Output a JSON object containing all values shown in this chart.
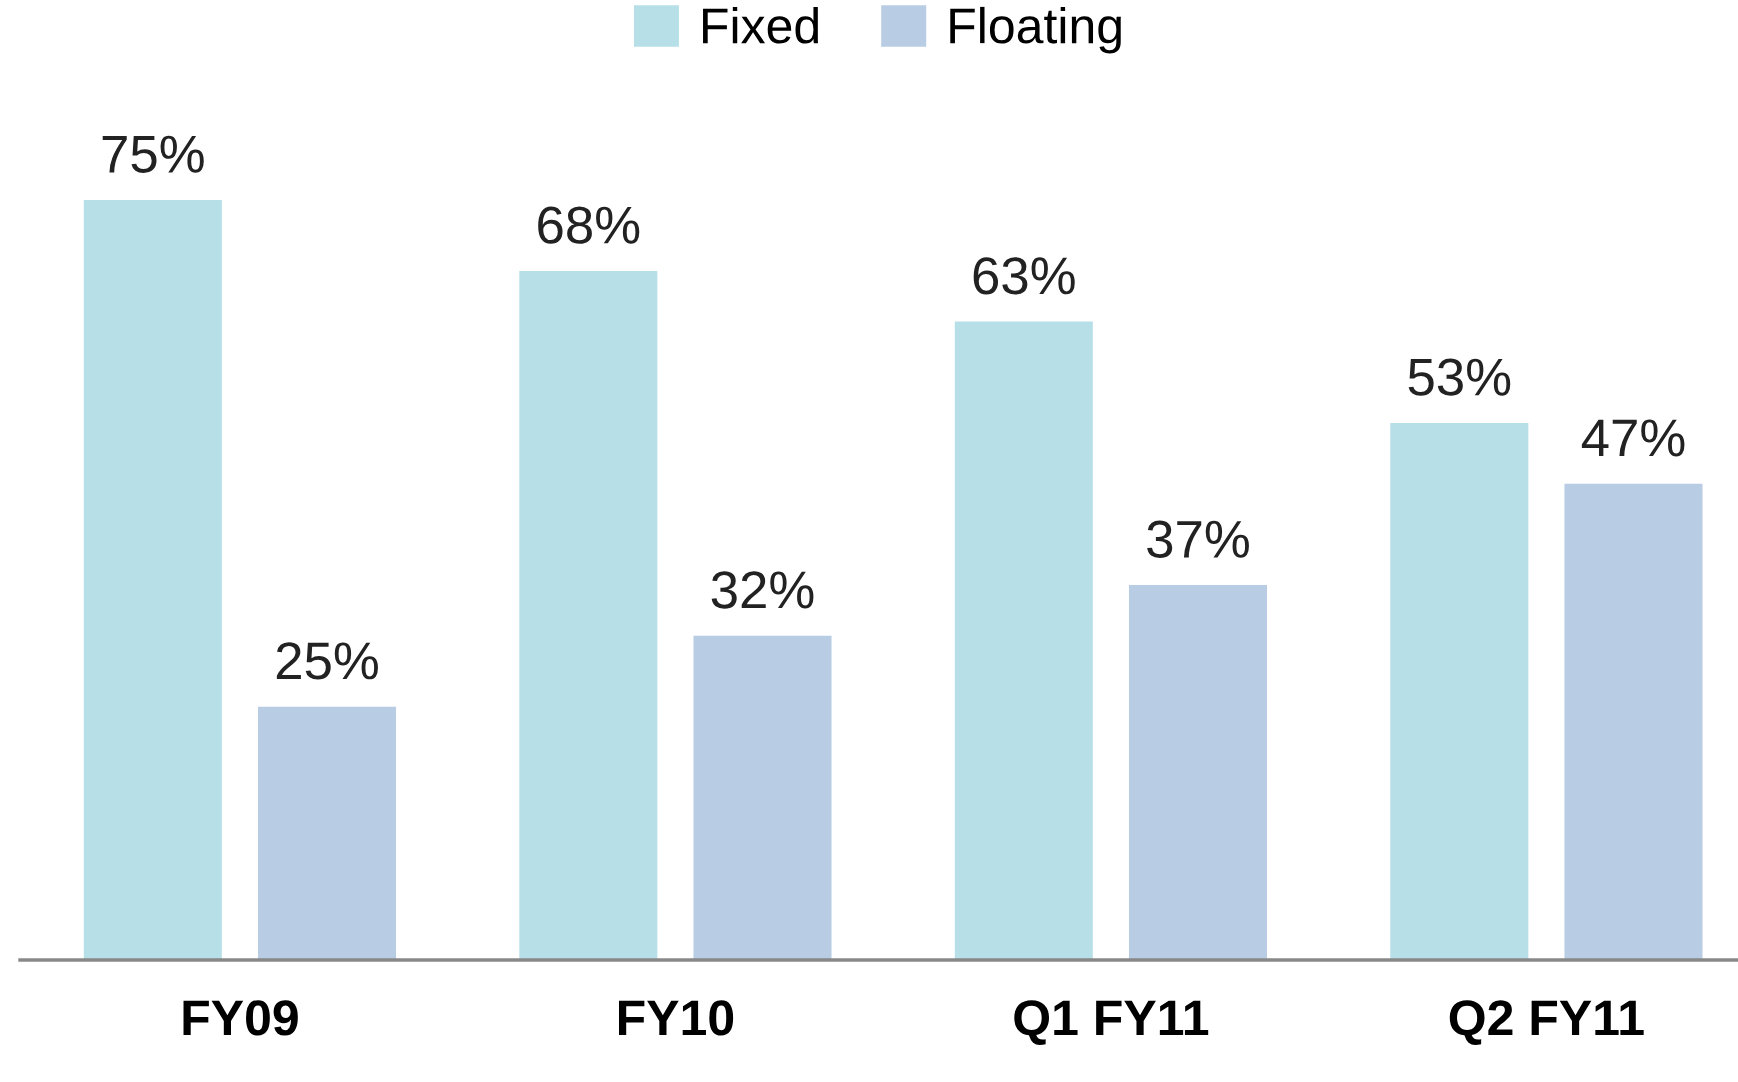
{
  "chart_data": {
    "type": "bar",
    "categories": [
      "FY09",
      "FY10",
      "Q1 FY11",
      "Q2 FY11"
    ],
    "series": [
      {
        "name": "Fixed",
        "color": "#b7dfe8",
        "values": [
          75,
          68,
          63,
          53
        ],
        "value_labels": [
          "75%",
          "68%",
          "63%",
          "53%"
        ]
      },
      {
        "name": "Floating",
        "color": "#b8cce4",
        "values": [
          25,
          32,
          37,
          47
        ],
        "value_labels": [
          "25%",
          "32%",
          "37%",
          "47%"
        ]
      }
    ],
    "tick_labels": "x",
    "legend": "top",
    "grid": false
  }
}
